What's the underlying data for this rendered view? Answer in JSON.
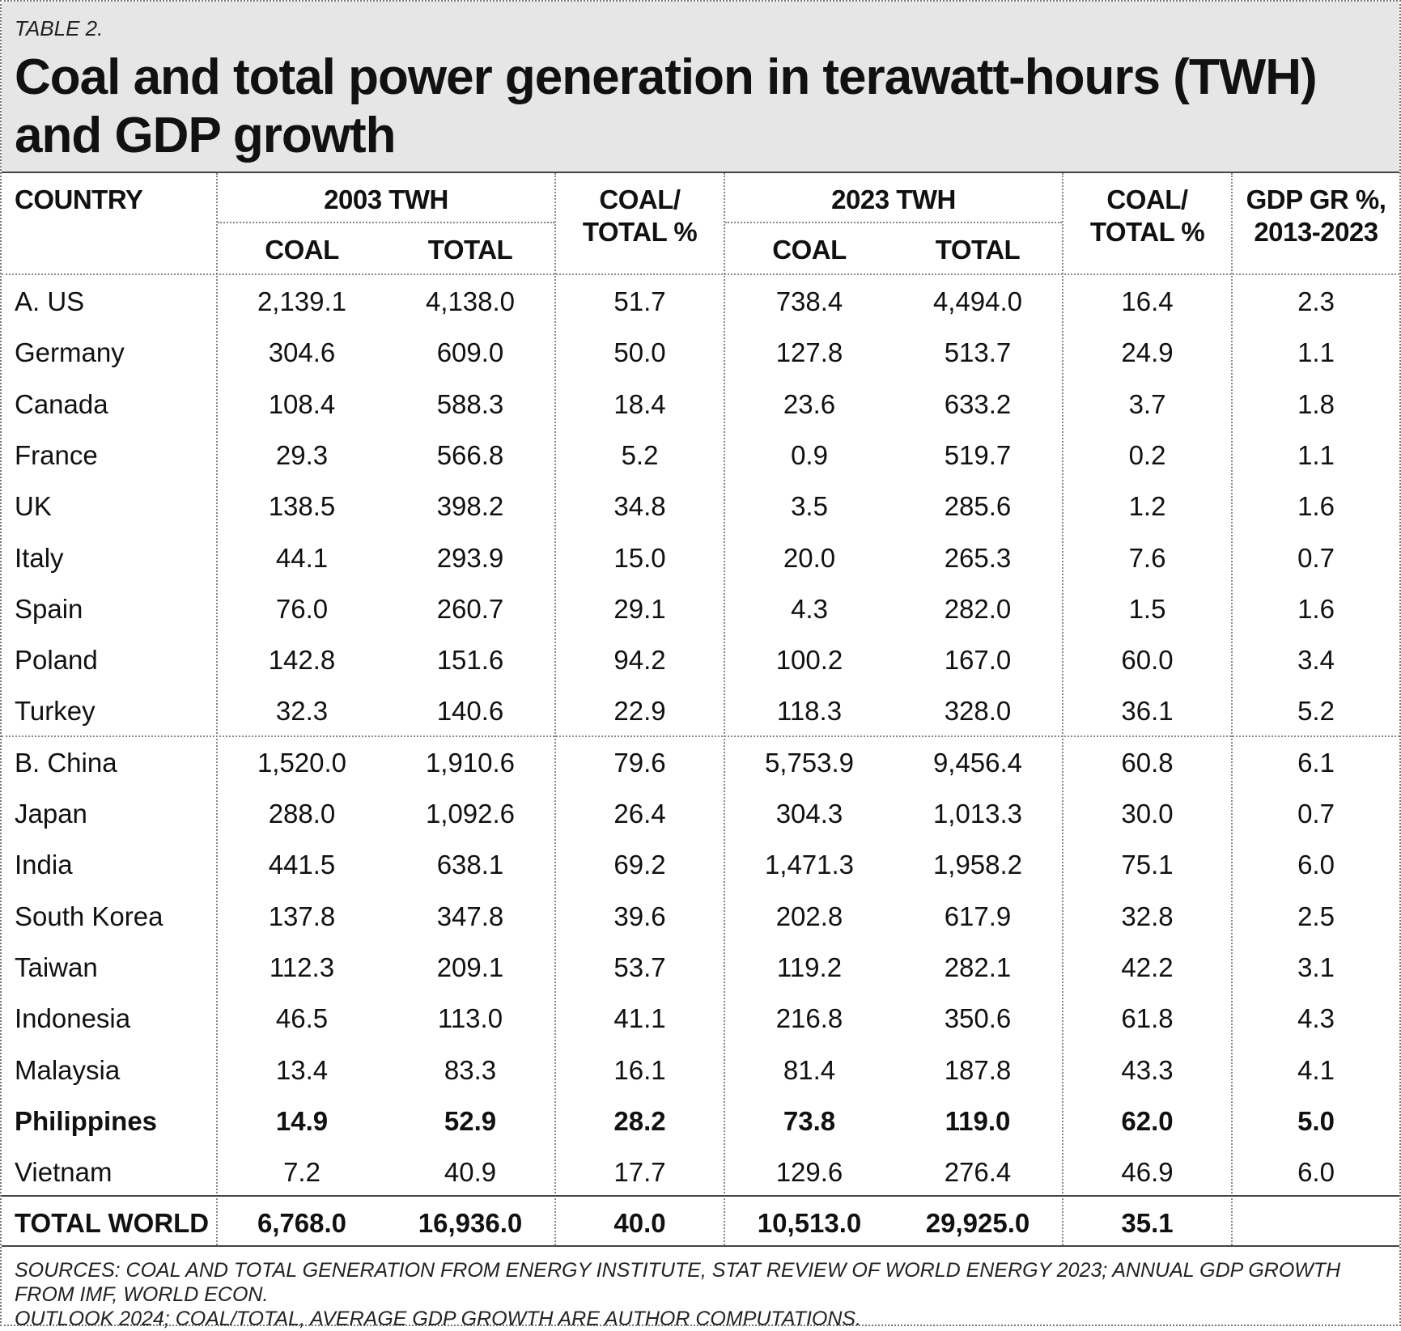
{
  "label": "TABLE 2.",
  "title_line1": "Coal and total power generation in terawatt-hours (TWH)",
  "title_line2": "and GDP growth",
  "headers": {
    "country": "COUNTRY",
    "group_2003": "2003 TWH",
    "group_2023": "2023 TWH",
    "coal": "COAL",
    "total": "TOTAL",
    "ratio_line1": "COAL/",
    "ratio_line2": "TOTAL %",
    "gdp_line1": "GDP GR %,",
    "gdp_line2": "2013-2023"
  },
  "rows": [
    {
      "country": "A. US",
      "coal_2003": "2,139.1",
      "total_2003": "4,138.0",
      "ratio_2003": "51.7",
      "coal_2023": "738.4",
      "total_2023": "4,494.0",
      "ratio_2023": "16.4",
      "gdp": "2.3"
    },
    {
      "country": "Germany",
      "coal_2003": "304.6",
      "total_2003": "609.0",
      "ratio_2003": "50.0",
      "coal_2023": "127.8",
      "total_2023": "513.7",
      "ratio_2023": "24.9",
      "gdp": "1.1"
    },
    {
      "country": "Canada",
      "coal_2003": "108.4",
      "total_2003": "588.3",
      "ratio_2003": "18.4",
      "coal_2023": "23.6",
      "total_2023": "633.2",
      "ratio_2023": "3.7",
      "gdp": "1.8"
    },
    {
      "country": "France",
      "coal_2003": "29.3",
      "total_2003": "566.8",
      "ratio_2003": "5.2",
      "coal_2023": "0.9",
      "total_2023": "519.7",
      "ratio_2023": "0.2",
      "gdp": "1.1"
    },
    {
      "country": "UK",
      "coal_2003": "138.5",
      "total_2003": "398.2",
      "ratio_2003": "34.8",
      "coal_2023": "3.5",
      "total_2023": "285.6",
      "ratio_2023": "1.2",
      "gdp": "1.6"
    },
    {
      "country": "Italy",
      "coal_2003": "44.1",
      "total_2003": "293.9",
      "ratio_2003": "15.0",
      "coal_2023": "20.0",
      "total_2023": "265.3",
      "ratio_2023": "7.6",
      "gdp": "0.7"
    },
    {
      "country": "Spain",
      "coal_2003": "76.0",
      "total_2003": "260.7",
      "ratio_2003": "29.1",
      "coal_2023": "4.3",
      "total_2023": "282.0",
      "ratio_2023": "1.5",
      "gdp": "1.6"
    },
    {
      "country": "Poland",
      "coal_2003": "142.8",
      "total_2003": "151.6",
      "ratio_2003": "94.2",
      "coal_2023": "100.2",
      "total_2023": "167.0",
      "ratio_2023": "60.0",
      "gdp": "3.4"
    },
    {
      "country": "Turkey",
      "coal_2003": "32.3",
      "total_2003": "140.6",
      "ratio_2003": "22.9",
      "coal_2023": "118.3",
      "total_2023": "328.0",
      "ratio_2023": "36.1",
      "gdp": "5.2"
    },
    {
      "country": "B. China",
      "coal_2003": "1,520.0",
      "total_2003": "1,910.6",
      "ratio_2003": "79.6",
      "coal_2023": "5,753.9",
      "total_2023": "9,456.4",
      "ratio_2023": "60.8",
      "gdp": "6.1"
    },
    {
      "country": "Japan",
      "coal_2003": "288.0",
      "total_2003": "1,092.6",
      "ratio_2003": "26.4",
      "coal_2023": "304.3",
      "total_2023": "1,013.3",
      "ratio_2023": "30.0",
      "gdp": "0.7"
    },
    {
      "country": "India",
      "coal_2003": "441.5",
      "total_2003": "638.1",
      "ratio_2003": "69.2",
      "coal_2023": "1,471.3",
      "total_2023": "1,958.2",
      "ratio_2023": "75.1",
      "gdp": "6.0"
    },
    {
      "country": "South Korea",
      "coal_2003": "137.8",
      "total_2003": "347.8",
      "ratio_2003": "39.6",
      "coal_2023": "202.8",
      "total_2023": "617.9",
      "ratio_2023": "32.8",
      "gdp": "2.5"
    },
    {
      "country": "Taiwan",
      "coal_2003": "112.3",
      "total_2003": "209.1",
      "ratio_2003": "53.7",
      "coal_2023": "119.2",
      "total_2023": "282.1",
      "ratio_2023": "42.2",
      "gdp": "3.1"
    },
    {
      "country": "Indonesia",
      "coal_2003": "46.5",
      "total_2003": "113.0",
      "ratio_2003": "41.1",
      "coal_2023": "216.8",
      "total_2023": "350.6",
      "ratio_2023": "61.8",
      "gdp": "4.3"
    },
    {
      "country": "Malaysia",
      "coal_2003": "13.4",
      "total_2003": "83.3",
      "ratio_2003": "16.1",
      "coal_2023": "81.4",
      "total_2023": "187.8",
      "ratio_2023": "43.3",
      "gdp": "4.1"
    },
    {
      "country": "Philippines",
      "coal_2003": "14.9",
      "total_2003": "52.9",
      "ratio_2003": "28.2",
      "coal_2023": "73.8",
      "total_2023": "119.0",
      "ratio_2023": "62.0",
      "gdp": "5.0",
      "bold": true
    },
    {
      "country": "Vietnam",
      "coal_2003": "7.2",
      "total_2003": "40.9",
      "ratio_2003": "17.7",
      "coal_2023": "129.6",
      "total_2023": "276.4",
      "ratio_2023": "46.9",
      "gdp": "6.0"
    },
    {
      "country": "TOTAL WORLD",
      "coal_2003": "6,768.0",
      "total_2003": "16,936.0",
      "ratio_2003": "40.0",
      "coal_2023": "10,513.0",
      "total_2023": "29,925.0",
      "ratio_2023": "35.1",
      "gdp": "",
      "bold": true
    }
  ],
  "footer_line1": "SOURCES: COAL AND TOTAL GENERATION FROM ENERGY INSTITUTE, STAT REVIEW OF WORLD ENERGY 2023; ANNUAL GDP GROWTH FROM IMF, WORLD ECON.",
  "footer_line2": "OUTLOOK 2024; COAL/TOTAL, AVERAGE GDP GROWTH ARE AUTHOR COMPUTATIONS."
}
